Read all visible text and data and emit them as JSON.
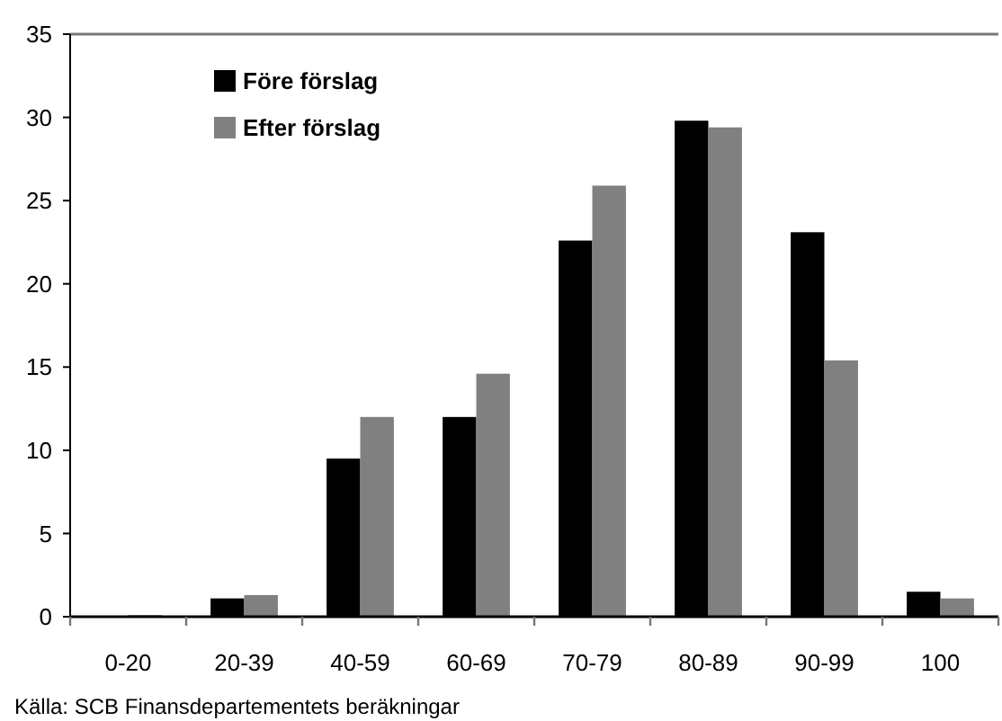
{
  "chart_data": {
    "type": "bar",
    "categories": [
      "0-20",
      "20-39",
      "40-59",
      "60-69",
      "70-79",
      "80-89",
      "90-99",
      "100"
    ],
    "series": [
      {
        "name": "Före förslag",
        "color": "#000000",
        "values": [
          0,
          1.1,
          9.5,
          12,
          22.6,
          29.8,
          23.1,
          1.5
        ]
      },
      {
        "name": "Efter förslag",
        "color": "#808080",
        "values": [
          0.1,
          1.3,
          12,
          14.6,
          25.9,
          29.4,
          15.4,
          1.1
        ]
      }
    ],
    "ylim": [
      0,
      35
    ],
    "yticks": [
      0,
      5,
      10,
      15,
      20,
      25,
      30,
      35
    ],
    "grid": false,
    "legend": "top left",
    "annotations": [
      "Källa: SCB Finansdepartementets beräkningar"
    ]
  }
}
